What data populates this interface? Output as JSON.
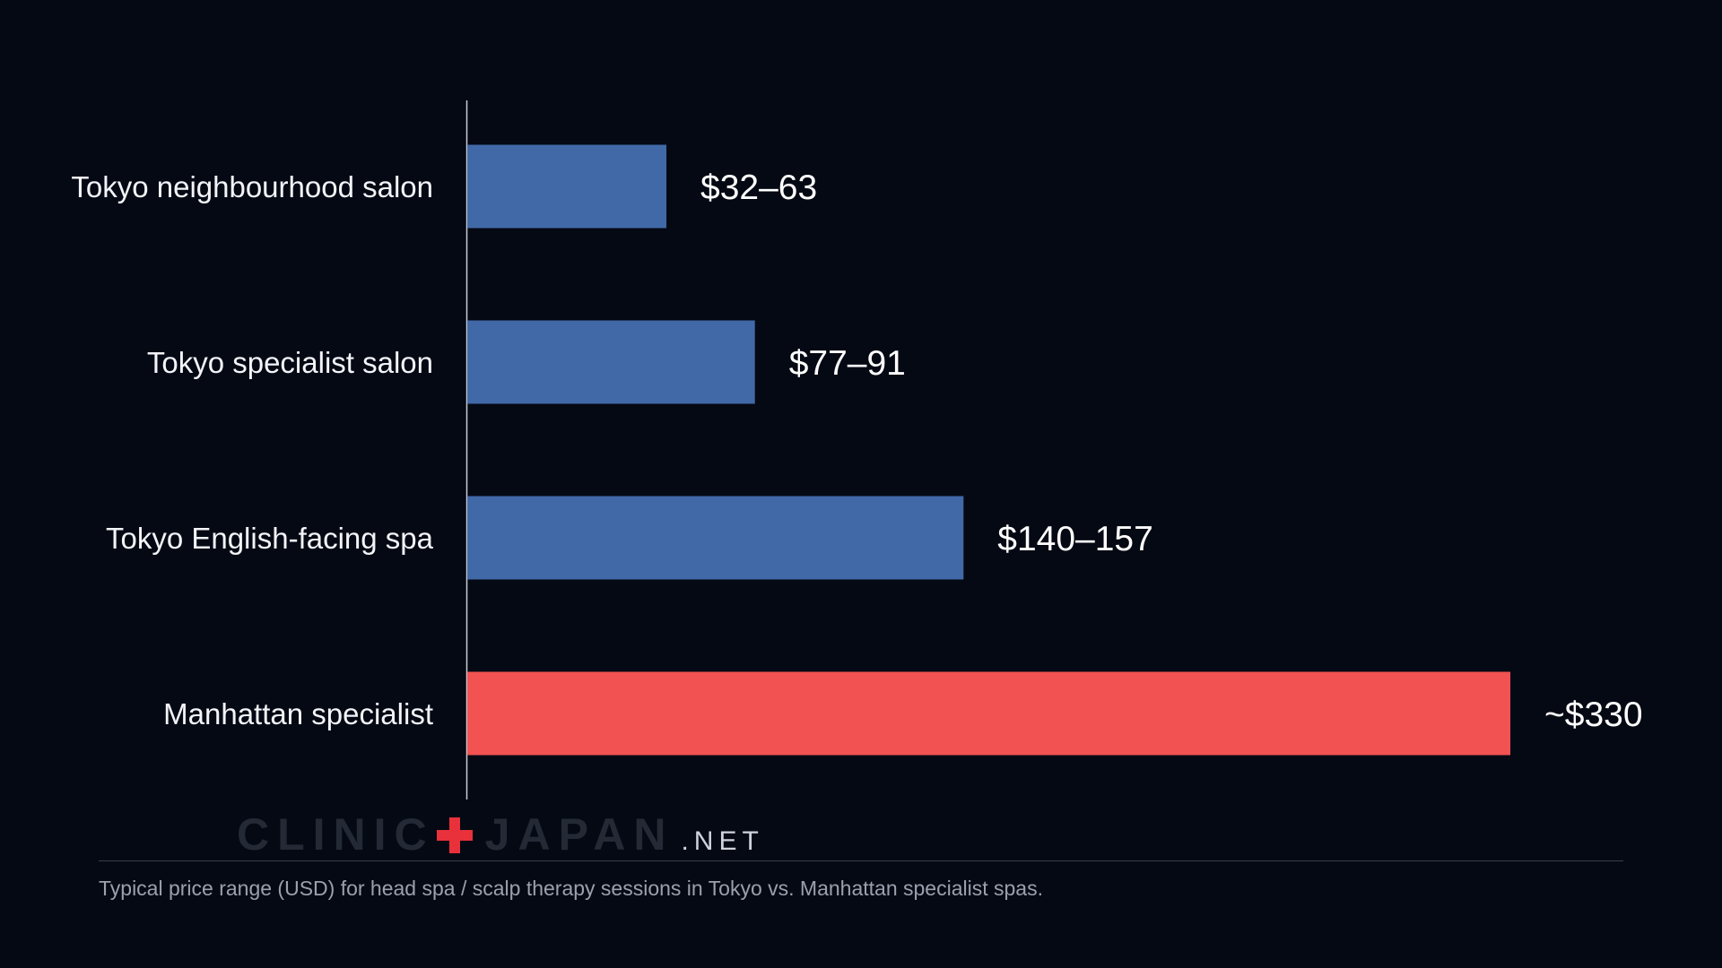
{
  "chart_data": {
    "type": "bar",
    "orientation": "horizontal",
    "categories": [
      "Tokyo neighbourhood salon",
      "Tokyo specialist salon",
      "Tokyo English-facing spa",
      "Manhattan specialist"
    ],
    "values": [
      63,
      91,
      157,
      330
    ],
    "ranges": [
      [
        32,
        63
      ],
      [
        77,
        91
      ],
      [
        140,
        157
      ],
      [
        330,
        330
      ]
    ],
    "value_labels": [
      "$32–63",
      "$77–91",
      "$140–157",
      "~$330"
    ],
    "colors": [
      "#4169a8",
      "#4169a8",
      "#4169a8",
      "#f25252"
    ],
    "xlim": [
      0,
      330
    ],
    "grid": false,
    "title": "",
    "xlabel": "",
    "ylabel": ""
  },
  "logo": {
    "part1": "CLINIC",
    "part2": "JAPAN",
    "suffix": ".NET"
  },
  "caption": "Typical price range (USD) for head spa / scalp therapy sessions in Tokyo vs. Manhattan specialist spas."
}
